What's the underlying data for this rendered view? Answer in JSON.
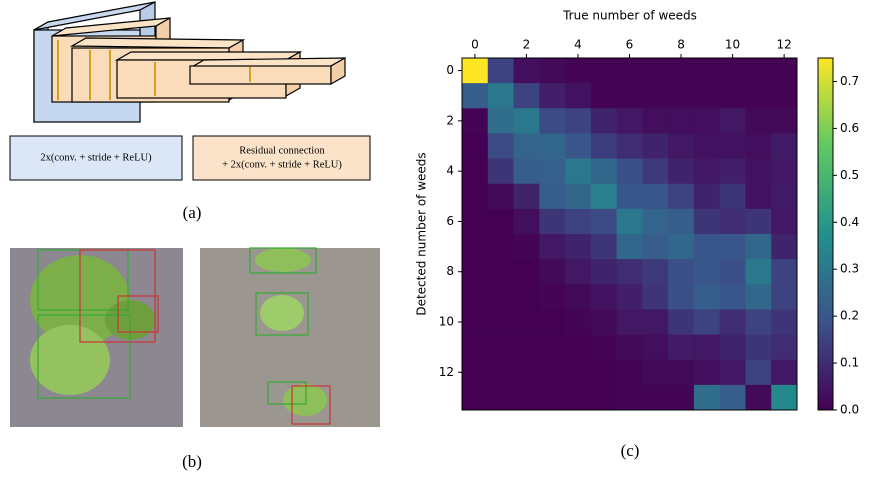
{
  "figure_a": {
    "legend": [
      "2x(conv. + stride + ReLU)",
      [
        "Residual connection",
        "+ 2x(conv. + stride + ReLU)"
      ]
    ],
    "caption": "(a)"
  },
  "figure_b": {
    "caption": "(b)"
  },
  "chart_data": {
    "type": "heatmap",
    "x_label": "True number of weeds",
    "y_label": "Detected number of weeds",
    "caption": "(c)",
    "x": [
      0,
      1,
      2,
      3,
      4,
      5,
      6,
      7,
      8,
      9,
      10,
      11,
      12
    ],
    "y": [
      0,
      1,
      2,
      3,
      4,
      5,
      6,
      7,
      8,
      9,
      10,
      11,
      12,
      13
    ],
    "values": [
      [
        0.75,
        0.15,
        0.03,
        0.02,
        0.01,
        0.01,
        0.01,
        0.01,
        0.01,
        0.01,
        0.01,
        0.01,
        0.01
      ],
      [
        0.22,
        0.3,
        0.15,
        0.07,
        0.04,
        0.01,
        0.01,
        0.01,
        0.01,
        0.01,
        0.01,
        0.01,
        0.01
      ],
      [
        0.01,
        0.27,
        0.3,
        0.17,
        0.15,
        0.08,
        0.05,
        0.03,
        0.03,
        0.03,
        0.05,
        0.02,
        0.02
      ],
      [
        0,
        0.17,
        0.24,
        0.25,
        0.2,
        0.14,
        0.1,
        0.08,
        0.05,
        0.04,
        0.04,
        0.03,
        0.06
      ],
      [
        0,
        0.12,
        0.22,
        0.23,
        0.3,
        0.25,
        0.18,
        0.13,
        0.08,
        0.05,
        0.07,
        0.04,
        0.05
      ],
      [
        0,
        0.02,
        0.08,
        0.22,
        0.25,
        0.32,
        0.2,
        0.2,
        0.15,
        0.08,
        0.12,
        0.04,
        0.06
      ],
      [
        0,
        0,
        0.03,
        0.12,
        0.15,
        0.17,
        0.3,
        0.24,
        0.22,
        0.12,
        0.1,
        0.12,
        0.05
      ],
      [
        0,
        0,
        0.01,
        0.05,
        0.08,
        0.12,
        0.25,
        0.22,
        0.25,
        0.2,
        0.2,
        0.25,
        0.08
      ],
      [
        0,
        0,
        0,
        0.02,
        0.05,
        0.08,
        0.1,
        0.13,
        0.18,
        0.2,
        0.18,
        0.3,
        0.15
      ],
      [
        0,
        0,
        0,
        0.01,
        0.02,
        0.04,
        0.07,
        0.12,
        0.18,
        0.22,
        0.2,
        0.25,
        0.15
      ],
      [
        0,
        0,
        0,
        0,
        0.01,
        0.02,
        0.05,
        0.05,
        0.12,
        0.15,
        0.1,
        0.15,
        0.12
      ],
      [
        0,
        0,
        0,
        0,
        0,
        0.01,
        0.02,
        0.03,
        0.06,
        0.05,
        0.08,
        0.12,
        0.1
      ],
      [
        0,
        0,
        0,
        0,
        0,
        0,
        0.01,
        0.02,
        0.02,
        0.03,
        0.05,
        0.15,
        0.05
      ],
      [
        0,
        0,
        0,
        0,
        0,
        0,
        0.01,
        0.01,
        0.01,
        0.27,
        0.22,
        0.02,
        0.35
      ]
    ],
    "xlim": [
      -0.5,
      12.5
    ],
    "xticks": [
      0,
      2,
      4,
      6,
      8,
      10,
      12
    ],
    "ylim": [
      13.5,
      -0.5
    ],
    "yticks": [
      0,
      2,
      4,
      6,
      8,
      10,
      12
    ],
    "colormap": "viridis",
    "colorbar": {
      "lim": [
        0,
        0.75
      ],
      "ticks": [
        {
          "value": 0,
          "label": "0.0"
        },
        0.1,
        0.2,
        0.3,
        0.4,
        0.5,
        0.6,
        0.7
      ]
    }
  }
}
